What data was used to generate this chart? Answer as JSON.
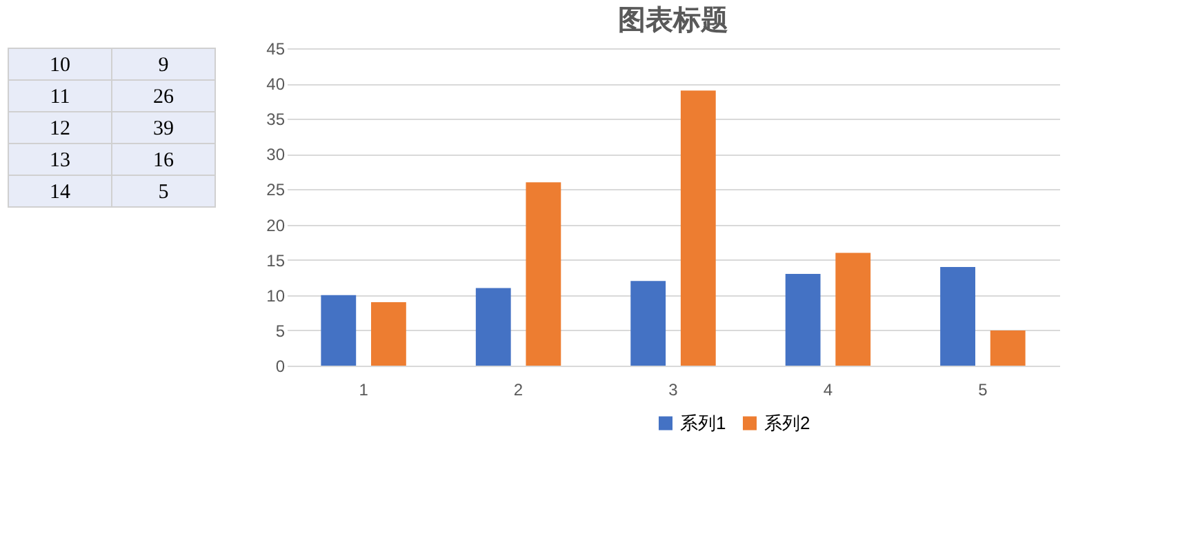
{
  "chart_data": {
    "type": "bar",
    "title": "图表标题",
    "categories": [
      "1",
      "2",
      "3",
      "4",
      "5"
    ],
    "series": [
      {
        "name": "系列1",
        "color": "#4472c4",
        "values": [
          10,
          11,
          12,
          13,
          14
        ]
      },
      {
        "name": "系列2",
        "color": "#ed7d31",
        "values": [
          9,
          26,
          39,
          16,
          5
        ]
      }
    ],
    "ylim": [
      0,
      45
    ],
    "yticks": [
      0,
      5,
      10,
      15,
      20,
      25,
      30,
      35,
      40,
      45
    ],
    "annotations": [
      "10",
      "9",
      "11",
      "26",
      "12",
      "39",
      "13",
      "16",
      "14",
      "5"
    ],
    "grid": "y",
    "legend": "bottom"
  }
}
